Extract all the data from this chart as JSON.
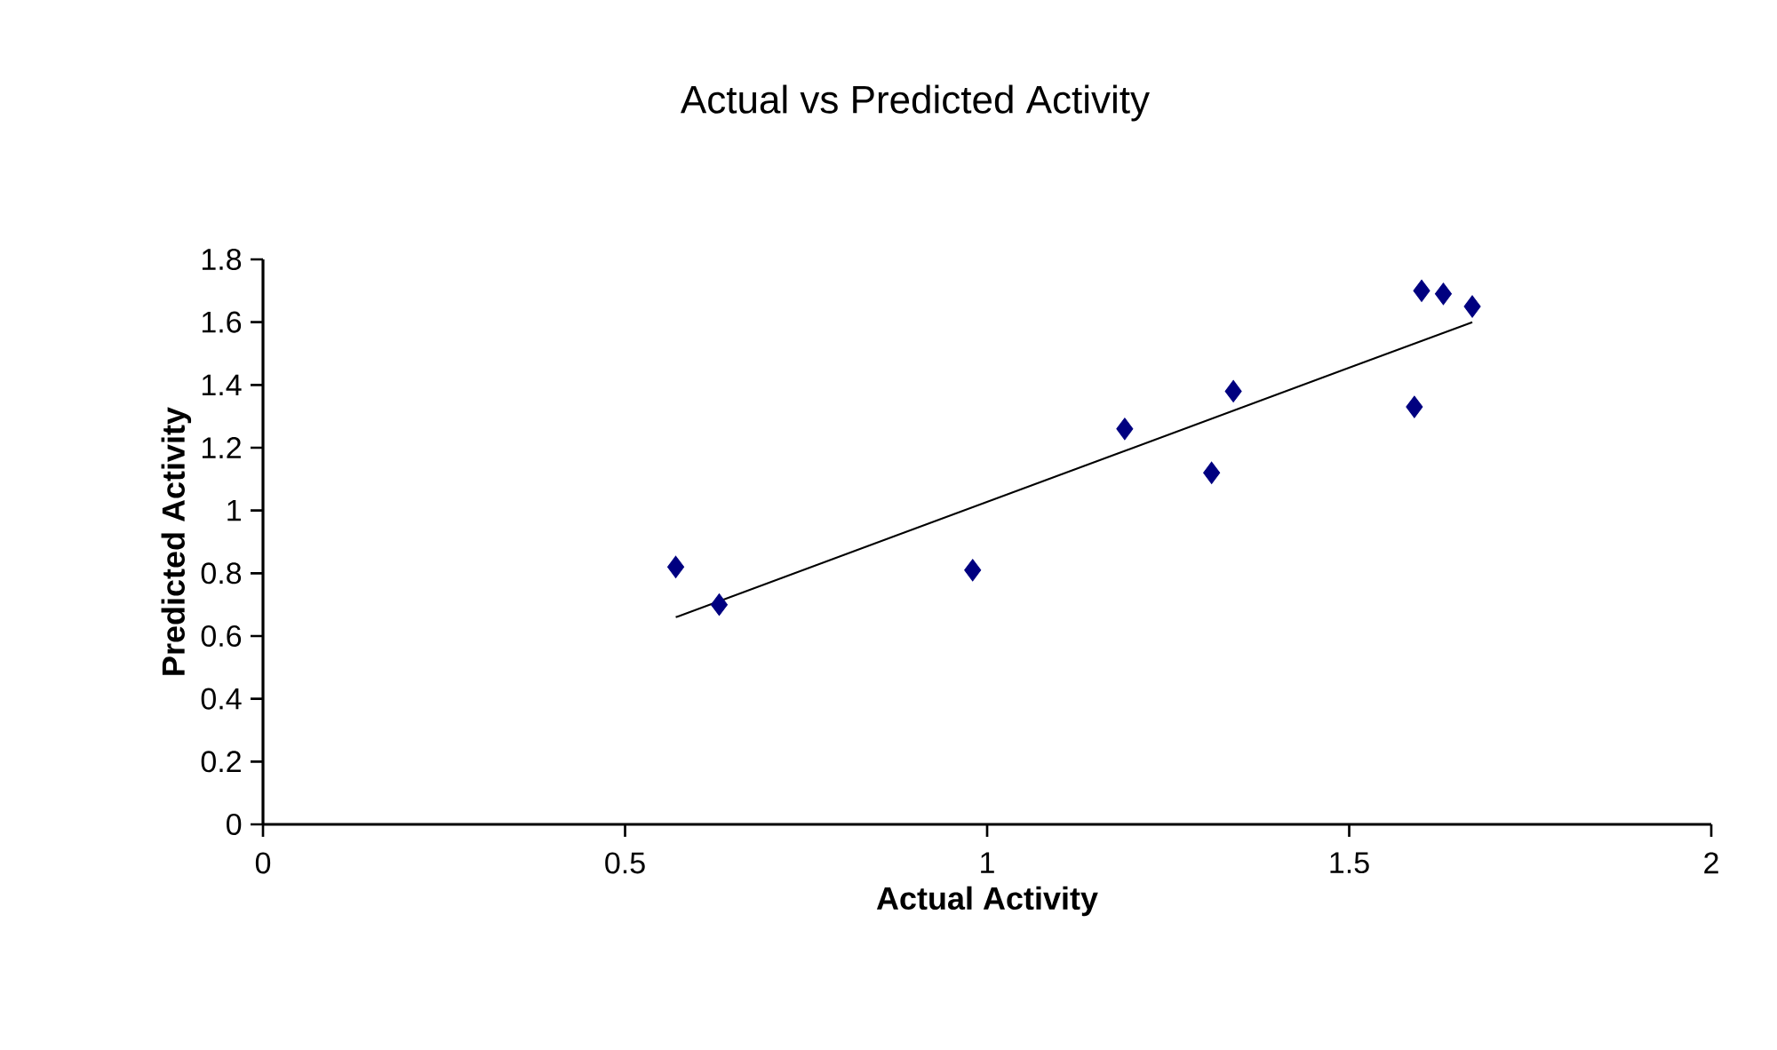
{
  "chart_data": {
    "type": "scatter",
    "title": "Actual vs Predicted Activity",
    "xlabel": "Actual Activity",
    "ylabel": "Predicted Activity",
    "xlim": [
      0,
      2
    ],
    "xticks": [
      0,
      0.5,
      1,
      1.5,
      2
    ],
    "ylim": [
      0,
      1.8
    ],
    "yticks": [
      0,
      0.2,
      0.4,
      0.6,
      0.8,
      1,
      1.2,
      1.4,
      1.6,
      1.8
    ],
    "grid": false,
    "marker": "diamond",
    "series": [
      {
        "color": "#000080",
        "x": [
          0.57,
          0.63,
          0.98,
          1.19,
          1.31,
          1.34,
          1.59,
          1.6,
          1.63,
          1.67
        ],
        "values": [
          0.82,
          0.7,
          0.81,
          1.26,
          1.12,
          1.38,
          1.33,
          1.7,
          1.69,
          1.65
        ]
      },
      {
        "type": "line",
        "color": "#000000",
        "marker": "none",
        "x": [
          0.57,
          1.67
        ],
        "values": [
          0.66,
          1.6
        ]
      }
    ]
  }
}
